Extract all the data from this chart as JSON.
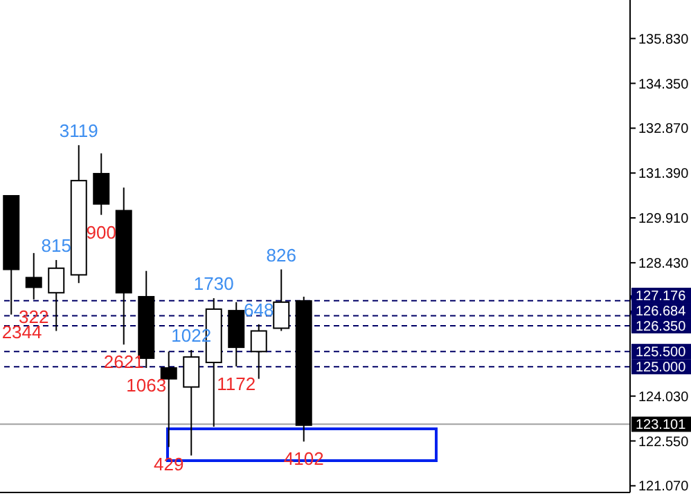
{
  "chart_data": {
    "type": "candlestick",
    "categories": [
      null,
      null,
      null,
      null,
      null,
      null,
      null,
      null,
      null,
      null,
      null,
      null,
      null,
      null,
      null,
      null,
      null,
      null,
      null,
      null,
      null,
      null,
      null,
      null,
      null,
      null,
      null,
      null
    ],
    "ohlc": [
      [
        130.64,
        130.64,
        126.72,
        128.21
      ],
      [
        127.94,
        128.75,
        127.22,
        127.62
      ],
      [
        127.44,
        128.52,
        126.18,
        128.25
      ],
      [
        128.03,
        132.31,
        127.76,
        131.14
      ],
      [
        131.37,
        132.04,
        130.01,
        130.37
      ],
      [
        130.15,
        130.91,
        125.73,
        127.44
      ],
      [
        127.31,
        128.16,
        124.96,
        125.28
      ],
      [
        124.96,
        125.5,
        122.35,
        124.6
      ],
      [
        124.33,
        125.55,
        122.07,
        125.32
      ],
      [
        125.14,
        127.26,
        123.02,
        126.9
      ],
      [
        126.85,
        127.13,
        125.01,
        125.64
      ],
      [
        125.5,
        126.4,
        124.6,
        126.18
      ],
      [
        126.27,
        128.21,
        126.18,
        127.13
      ],
      [
        127.17,
        127.31,
        122.53,
        123.07
      ],
      null,
      null,
      null,
      null,
      null,
      null,
      null,
      null,
      null,
      null,
      null,
      null,
      null,
      null
    ],
    "ylim": [
      120.85,
      137.1
    ],
    "yticks": [
      {
        "value": 121.07,
        "label": "121.070"
      },
      {
        "value": 122.55,
        "label": "122.550"
      },
      {
        "value": 124.03,
        "label": "124.030"
      },
      {
        "value": 128.43,
        "label": "128.430"
      },
      {
        "value": 129.91,
        "label": "129.910"
      },
      {
        "value": 131.39,
        "label": "131.390"
      },
      {
        "value": 132.87,
        "label": "132.870"
      },
      {
        "value": 134.35,
        "label": "134.350"
      },
      {
        "value": 135.83,
        "label": "135.830"
      }
    ],
    "tick_labels": "y",
    "grid": false,
    "ref_lines": [
      {
        "axis": "y",
        "value": 127.176,
        "label": "127.176",
        "color": "#000066",
        "line_style": "dashed"
      },
      {
        "axis": "y",
        "value": 126.684,
        "label": "126.684",
        "color": "#000066",
        "line_style": "dashed"
      },
      {
        "axis": "y",
        "value": 126.35,
        "label": "126.350",
        "color": "#000066",
        "line_style": "dashed"
      },
      {
        "axis": "y",
        "value": 125.5,
        "label": "125.500",
        "color": "#000066",
        "line_style": "dashed"
      },
      {
        "axis": "y",
        "value": 125.0,
        "label": "125.000",
        "color": "#000066",
        "line_style": "dashed"
      },
      {
        "axis": "y",
        "value": 123.101,
        "label": "123.101",
        "color": "#a0a0a0",
        "line_style": "solid"
      }
    ],
    "annotations": [
      {
        "text": "2344",
        "y": 126.72
      },
      {
        "text": "322",
        "y": 127.22
      },
      {
        "text": "815",
        "y": 128.52
      },
      {
        "text": "3119",
        "y": 132.31
      },
      {
        "text": "900",
        "y": 130.01
      },
      {
        "text": "2621",
        "y": 125.73
      },
      {
        "text": "1063",
        "y": 124.96
      },
      {
        "text": "429",
        "y": 122.35
      },
      {
        "text": "1022",
        "y": 125.55
      },
      {
        "text": "1730",
        "y": 127.26
      },
      {
        "text": "1172",
        "y": 125.01
      },
      {
        "text": "648",
        "y": 126.4
      },
      {
        "text": "826",
        "y": 128.21
      },
      {
        "text": "4102",
        "y": 122.53
      }
    ]
  }
}
